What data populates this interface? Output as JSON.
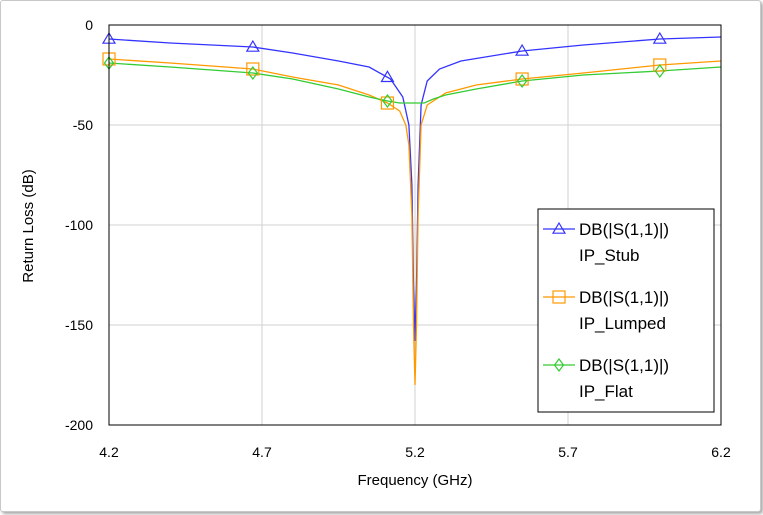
{
  "chart_data": {
    "type": "line",
    "xlabel": "Frequency (GHz)",
    "ylabel": "Return Loss (dB)",
    "xlim": [
      4.2,
      6.2
    ],
    "ylim": [
      -200,
      0
    ],
    "xticks": [
      "4.2",
      "4.7",
      "5.2",
      "5.7",
      "6.2"
    ],
    "xtick_values": [
      4.2,
      4.7,
      5.2,
      5.7,
      6.2
    ],
    "yticks": [
      "0",
      "-50",
      "-100",
      "-150",
      "-200"
    ],
    "ytick_values": [
      0,
      -50,
      -100,
      -150,
      -200
    ],
    "grid": true,
    "legend_position": "lower-right",
    "series": [
      {
        "name": "DB(|S(1,1)|)\nIP_Stub",
        "line1": "DB(|S(1,1)|)",
        "line2": "IP_Stub",
        "color": "#3333ff",
        "marker": "triangle",
        "x": [
          4.2,
          4.4,
          4.67,
          4.8,
          4.95,
          5.05,
          5.12,
          5.16,
          5.18,
          5.19,
          5.195,
          5.2,
          5.205,
          5.21,
          5.22,
          5.24,
          5.28,
          5.35,
          5.55,
          5.75,
          6.0,
          6.2
        ],
        "y": [
          -7,
          -9,
          -11,
          -14,
          -18,
          -21,
          -27,
          -36,
          -50,
          -80,
          -130,
          -158,
          -130,
          -80,
          -40,
          -28,
          -22,
          -18,
          -13,
          -10,
          -7,
          -6
        ],
        "marker_x": [
          4.2,
          4.67,
          5.11,
          5.55,
          6.0
        ]
      },
      {
        "name": "DB(|S(1,1)|)\nIP_Lumped",
        "line1": "DB(|S(1,1)|)",
        "line2": "IP_Lumped",
        "color": "#ff9900",
        "marker": "square",
        "x": [
          4.2,
          4.4,
          4.67,
          4.8,
          4.95,
          5.05,
          5.11,
          5.15,
          5.17,
          5.18,
          5.19,
          5.195,
          5.2,
          5.205,
          5.21,
          5.22,
          5.24,
          5.3,
          5.4,
          5.55,
          5.75,
          6.0,
          6.2
        ],
        "y": [
          -17,
          -19,
          -22,
          -26,
          -30,
          -35,
          -39,
          -43,
          -50,
          -60,
          -95,
          -150,
          -180,
          -150,
          -95,
          -50,
          -40,
          -34,
          -30,
          -27,
          -24,
          -20,
          -18
        ],
        "marker_x": [
          4.2,
          4.67,
          5.11,
          5.55,
          6.0
        ]
      },
      {
        "name": "DB(|S(1,1)|)\nIP_Flat",
        "line1": "DB(|S(1,1)|)",
        "line2": "IP_Flat",
        "color": "#33cc33",
        "marker": "diamond",
        "x": [
          4.2,
          4.4,
          4.67,
          4.8,
          4.95,
          5.05,
          5.11,
          5.15,
          5.17,
          5.19,
          5.2,
          5.21,
          5.23,
          5.26,
          5.3,
          5.4,
          5.55,
          5.75,
          6.0,
          6.2
        ],
        "y": [
          -19,
          -21,
          -24,
          -27,
          -32,
          -36,
          -38,
          -39,
          -39,
          -39,
          -39,
          -39,
          -39,
          -37,
          -35,
          -32,
          -28,
          -25,
          -23,
          -21
        ],
        "marker_x": [
          4.2,
          4.67,
          5.11,
          5.55,
          6.0
        ]
      }
    ]
  }
}
